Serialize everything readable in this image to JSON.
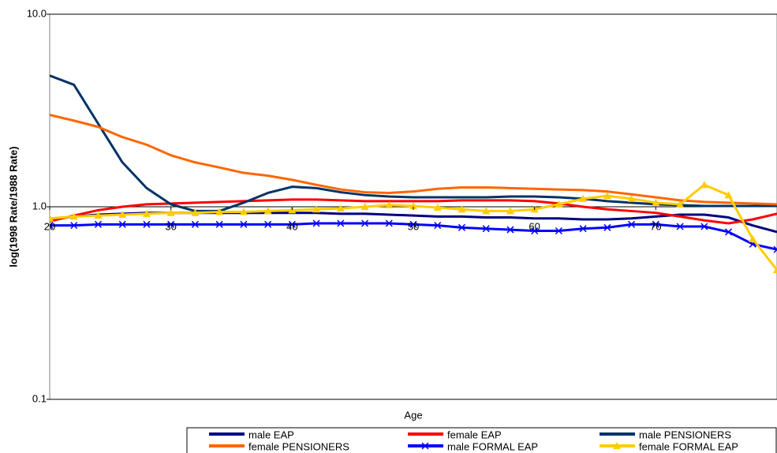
{
  "chart_data": {
    "type": "line",
    "x_label": "Age",
    "y_label": "log(1998 Rate/1988 Rate)",
    "log_y": true,
    "grid": true,
    "legend": "bottom",
    "xlim": [
      20,
      80
    ],
    "xticks": [
      20,
      30,
      40,
      50,
      60,
      70
    ],
    "ylim": [
      0.1,
      10
    ],
    "yticks": [
      0.1,
      {
        "value": 1,
        "label": "1.0"
      },
      {
        "value": 10,
        "label": "10.0"
      }
    ],
    "x": [
      20,
      22,
      24,
      26,
      28,
      30,
      32,
      34,
      36,
      38,
      40,
      42,
      44,
      46,
      48,
      50,
      52,
      54,
      56,
      58,
      60,
      62,
      64,
      66,
      68,
      70,
      72,
      74,
      76,
      78,
      80
    ],
    "series": [
      {
        "name": "male EAP",
        "color": "#000080",
        "marker": "none",
        "values": [
          0.86,
          0.89,
          0.91,
          0.92,
          0.93,
          0.93,
          0.93,
          0.93,
          0.93,
          0.93,
          0.93,
          0.93,
          0.92,
          0.92,
          0.91,
          0.9,
          0.89,
          0.89,
          0.88,
          0.88,
          0.87,
          0.87,
          0.86,
          0.86,
          0.87,
          0.89,
          0.91,
          0.91,
          0.88,
          0.8,
          0.74
        ]
      },
      {
        "name": "female EAP",
        "color": "#ff0000",
        "marker": "none",
        "values": [
          0.84,
          0.9,
          0.96,
          1.0,
          1.03,
          1.04,
          1.05,
          1.06,
          1.07,
          1.08,
          1.09,
          1.09,
          1.08,
          1.07,
          1.07,
          1.07,
          1.07,
          1.08,
          1.08,
          1.08,
          1.07,
          1.04,
          1.0,
          0.97,
          0.95,
          0.93,
          0.89,
          0.85,
          0.82,
          0.86,
          0.92
        ]
      },
      {
        "name": "male PENSIONERS",
        "color": "#003366",
        "marker": "none",
        "values": [
          4.8,
          4.3,
          2.7,
          1.7,
          1.25,
          1.03,
          0.95,
          0.95,
          1.05,
          1.18,
          1.27,
          1.25,
          1.19,
          1.15,
          1.13,
          1.12,
          1.12,
          1.12,
          1.12,
          1.13,
          1.13,
          1.12,
          1.1,
          1.07,
          1.05,
          1.03,
          1.02,
          1.01,
          1.01,
          1.01,
          1.01
        ]
      },
      {
        "name": "female PENSIONERS",
        "color": "#ff6600",
        "marker": "none",
        "values": [
          3.0,
          2.8,
          2.6,
          2.3,
          2.1,
          1.85,
          1.7,
          1.6,
          1.5,
          1.45,
          1.38,
          1.3,
          1.23,
          1.19,
          1.18,
          1.2,
          1.24,
          1.26,
          1.26,
          1.25,
          1.24,
          1.23,
          1.22,
          1.2,
          1.16,
          1.12,
          1.08,
          1.06,
          1.05,
          1.04,
          1.03
        ]
      },
      {
        "name": "male FORMAL EAP",
        "color": "#0000ff",
        "marker": "x",
        "values": [
          0.8,
          0.8,
          0.81,
          0.81,
          0.81,
          0.81,
          0.81,
          0.81,
          0.81,
          0.81,
          0.81,
          0.82,
          0.82,
          0.82,
          0.82,
          0.81,
          0.8,
          0.78,
          0.77,
          0.76,
          0.75,
          0.75,
          0.77,
          0.78,
          0.81,
          0.81,
          0.79,
          0.79,
          0.74,
          0.64,
          0.6
        ]
      },
      {
        "name": "female FORMAL EAP",
        "color": "#ffcc00",
        "marker": "triangle",
        "values": [
          0.87,
          0.89,
          0.9,
          0.91,
          0.92,
          0.93,
          0.93,
          0.94,
          0.94,
          0.95,
          0.96,
          0.97,
          0.98,
          1.0,
          1.02,
          1.01,
          0.99,
          0.97,
          0.95,
          0.95,
          0.97,
          1.03,
          1.1,
          1.14,
          1.1,
          1.05,
          1.03,
          1.3,
          1.15,
          0.68,
          0.47
        ]
      }
    ]
  }
}
